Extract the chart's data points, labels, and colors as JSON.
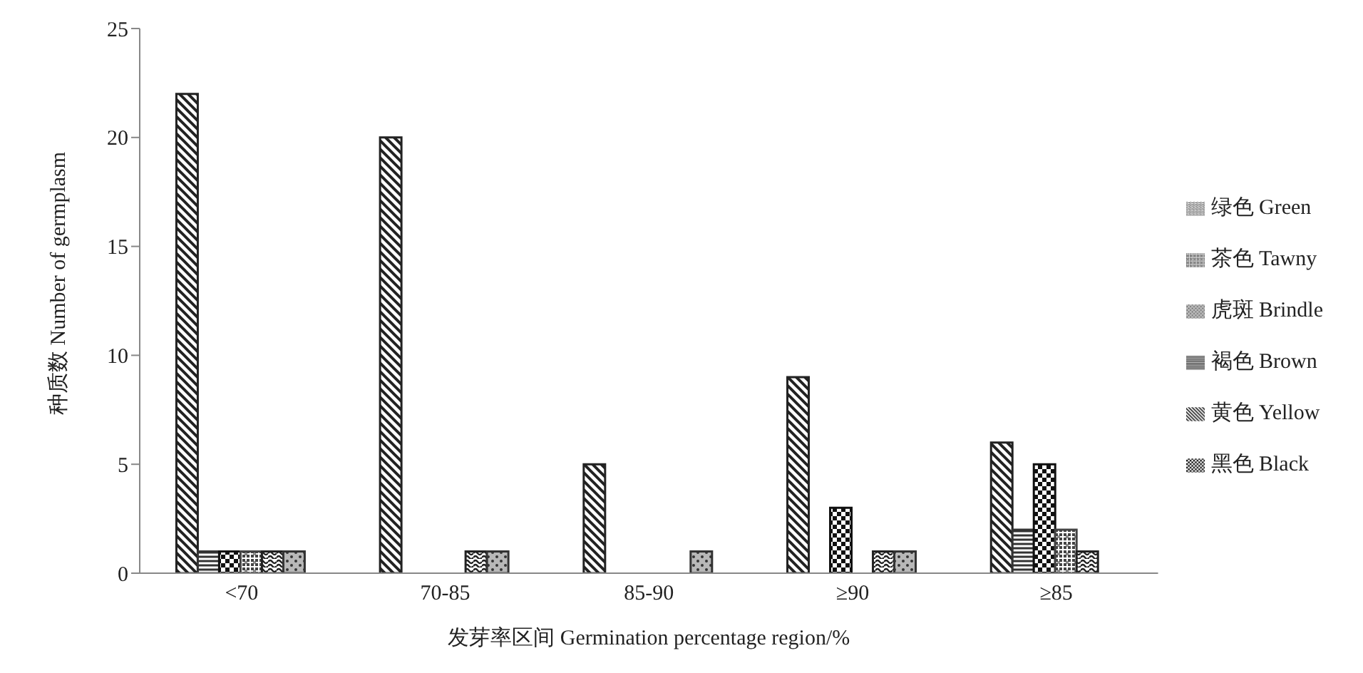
{
  "chart_data": {
    "type": "bar",
    "xlabel": "发芽率区间 Germination percentage region/%",
    "ylabel": "种质数 Number of germplasm",
    "categories": [
      "<70",
      "70-85",
      "85-90",
      "≥90",
      "≥85"
    ],
    "series": [
      {
        "name": "黄色 Yellow",
        "color": "#222222",
        "values": [
          22,
          20,
          5,
          9,
          6
        ]
      },
      {
        "name": "褐色 Brown",
        "color": "#333333",
        "values": [
          1,
          0,
          0,
          0,
          2
        ]
      },
      {
        "name": "黑色 Black",
        "color": "#111111",
        "values": [
          1,
          0,
          0,
          3,
          5
        ]
      },
      {
        "name": "茶色 Tawny",
        "color": "#444444",
        "values": [
          1,
          0,
          0,
          0,
          2
        ]
      },
      {
        "name": "绿色 Green",
        "color": "#222222",
        "values": [
          1,
          1,
          0,
          1,
          1
        ]
      },
      {
        "name": "虎斑 Brindle",
        "color": "#333333",
        "values": [
          1,
          1,
          1,
          1,
          0
        ]
      }
    ],
    "ylim": [
      0,
      25
    ],
    "yticks": [
      0,
      5,
      10,
      15,
      20,
      25
    ],
    "grid": false,
    "legend": "right"
  }
}
